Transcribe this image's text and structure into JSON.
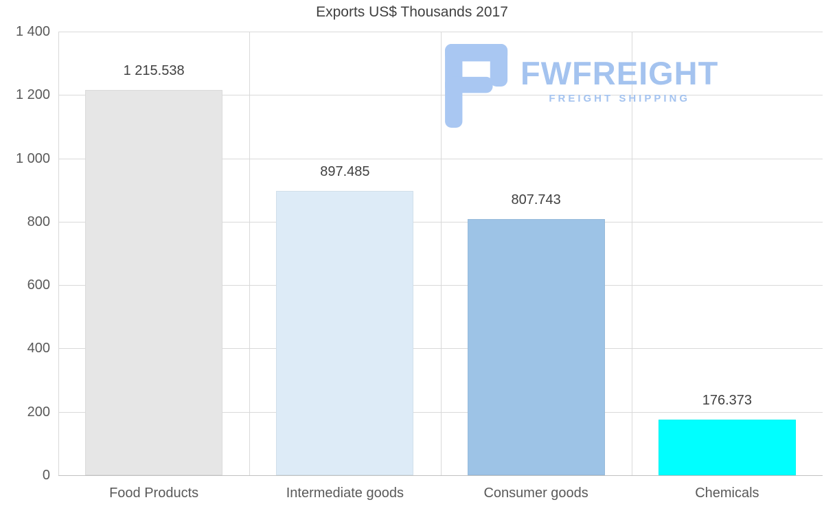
{
  "page": {
    "background": "#ffffff"
  },
  "logo": {
    "name": "FWFREIGHT",
    "tagline": "FREIGHT SHIPPING",
    "color": "#a4c3ef"
  },
  "chart_data": {
    "type": "bar",
    "title": "Exports US$ Thousands 2017",
    "categories": [
      "Food Products",
      "Intermediate goods",
      "Consumer goods",
      "Chemicals"
    ],
    "values": [
      1215.538,
      897.485,
      807.743,
      176.373
    ],
    "value_labels": [
      "1 215.538",
      "897.485",
      "807.743",
      "176.373"
    ],
    "bar_colors": [
      "#e6e6e6",
      "#ddebf7",
      "#9dc3e6",
      "#00ffff"
    ],
    "xlabel": "",
    "ylabel": "",
    "ylim": [
      0,
      1400
    ],
    "ytick_interval": 200,
    "ytick_labels": [
      "0",
      "200",
      "400",
      "600",
      "800",
      "1 000",
      "1 200",
      "1 400"
    ],
    "grid": true,
    "legend_position": "none",
    "gridline_color": "#d9d9d9",
    "text_colors": {
      "title": "#404040",
      "axis_labels": "#595959",
      "value_labels": "#404040"
    }
  }
}
